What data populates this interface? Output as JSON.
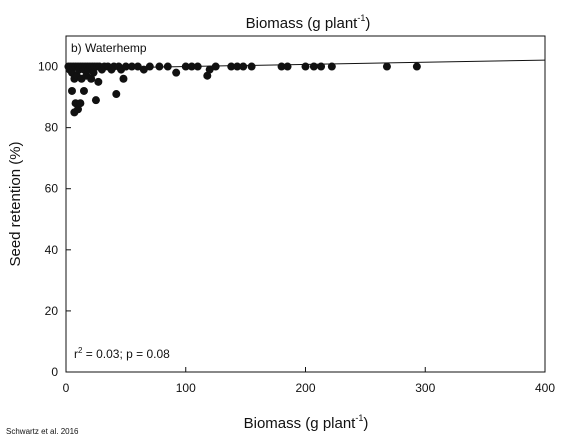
{
  "chart_data": {
    "type": "scatter",
    "title": "Biomass (g plant-1)",
    "title_parts": {
      "main": "Biomass (g plant",
      "sup": "-1",
      "end": ")"
    },
    "panel_label": "b) Waterhemp",
    "xlabel": "Biomass (g plant-1)",
    "xlabel_parts": {
      "main": "Biomass (g plant",
      "sup": "-1",
      "end": ")"
    },
    "ylabel": "Seed retention (%)",
    "xlim": [
      0,
      400
    ],
    "ylim": [
      0,
      110
    ],
    "x_ticks": [
      0,
      100,
      200,
      300,
      400
    ],
    "y_ticks": [
      0,
      20,
      40,
      60,
      80,
      100
    ],
    "grid": false,
    "annotation": "r2 = 0.03; p = 0.08",
    "annotation_parts": {
      "r": "r",
      "sup": "2",
      "rest": " = 0.03; p = 0.08"
    },
    "source_note": "Schwartz et al. 2016",
    "marker_color": "#111111",
    "trend_line": {
      "x": [
        0,
        400
      ],
      "y": [
        99.3,
        102.1
      ]
    },
    "points": [
      {
        "x": 2,
        "y": 100
      },
      {
        "x": 3,
        "y": 99
      },
      {
        "x": 4,
        "y": 100
      },
      {
        "x": 5,
        "y": 98
      },
      {
        "x": 5,
        "y": 92
      },
      {
        "x": 6,
        "y": 100
      },
      {
        "x": 7,
        "y": 96
      },
      {
        "x": 7,
        "y": 85
      },
      {
        "x": 8,
        "y": 100
      },
      {
        "x": 8,
        "y": 88
      },
      {
        "x": 9,
        "y": 97
      },
      {
        "x": 10,
        "y": 100
      },
      {
        "x": 10,
        "y": 86
      },
      {
        "x": 11,
        "y": 99
      },
      {
        "x": 12,
        "y": 100
      },
      {
        "x": 12,
        "y": 88
      },
      {
        "x": 13,
        "y": 96
      },
      {
        "x": 14,
        "y": 100
      },
      {
        "x": 15,
        "y": 99
      },
      {
        "x": 15,
        "y": 92
      },
      {
        "x": 16,
        "y": 100
      },
      {
        "x": 17,
        "y": 97
      },
      {
        "x": 18,
        "y": 100
      },
      {
        "x": 19,
        "y": 99
      },
      {
        "x": 20,
        "y": 100
      },
      {
        "x": 21,
        "y": 96
      },
      {
        "x": 22,
        "y": 100
      },
      {
        "x": 23,
        "y": 98
      },
      {
        "x": 24,
        "y": 100
      },
      {
        "x": 25,
        "y": 89
      },
      {
        "x": 26,
        "y": 100
      },
      {
        "x": 27,
        "y": 95
      },
      {
        "x": 28,
        "y": 100
      },
      {
        "x": 30,
        "y": 99
      },
      {
        "x": 32,
        "y": 100
      },
      {
        "x": 35,
        "y": 100
      },
      {
        "x": 38,
        "y": 99
      },
      {
        "x": 40,
        "y": 100
      },
      {
        "x": 42,
        "y": 91
      },
      {
        "x": 44,
        "y": 100
      },
      {
        "x": 46,
        "y": 99
      },
      {
        "x": 48,
        "y": 96
      },
      {
        "x": 50,
        "y": 100
      },
      {
        "x": 55,
        "y": 100
      },
      {
        "x": 60,
        "y": 100
      },
      {
        "x": 65,
        "y": 99
      },
      {
        "x": 70,
        "y": 100
      },
      {
        "x": 78,
        "y": 100
      },
      {
        "x": 85,
        "y": 100
      },
      {
        "x": 92,
        "y": 98
      },
      {
        "x": 100,
        "y": 100
      },
      {
        "x": 105,
        "y": 100
      },
      {
        "x": 110,
        "y": 100
      },
      {
        "x": 118,
        "y": 97
      },
      {
        "x": 120,
        "y": 99
      },
      {
        "x": 125,
        "y": 100
      },
      {
        "x": 138,
        "y": 100
      },
      {
        "x": 143,
        "y": 100
      },
      {
        "x": 148,
        "y": 100
      },
      {
        "x": 155,
        "y": 100
      },
      {
        "x": 180,
        "y": 100
      },
      {
        "x": 185,
        "y": 100
      },
      {
        "x": 200,
        "y": 100
      },
      {
        "x": 207,
        "y": 100
      },
      {
        "x": 213,
        "y": 100
      },
      {
        "x": 222,
        "y": 100
      },
      {
        "x": 268,
        "y": 100
      },
      {
        "x": 293,
        "y": 100
      }
    ]
  }
}
